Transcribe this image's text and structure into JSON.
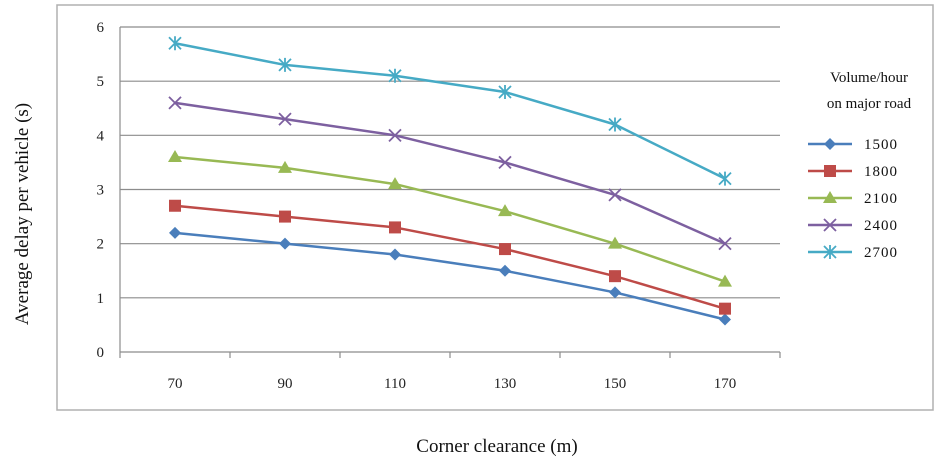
{
  "chart_data": {
    "type": "line",
    "title": "",
    "xlabel": "Corner clearance (m)",
    "ylabel": "Average delay per vehicle (s)",
    "categories": [
      "70",
      "90",
      "110",
      "130",
      "150",
      "170"
    ],
    "ylim": [
      0,
      6
    ],
    "yticks": [
      "0",
      "1",
      "2",
      "3",
      "4",
      "5",
      "6"
    ],
    "grid": "horizontal",
    "legend_position": "right",
    "legend_title_lines": [
      "Volume/hour",
      "on major road"
    ],
    "series": [
      {
        "name": "1500",
        "values": [
          2.2,
          2.0,
          1.8,
          1.5,
          1.1,
          0.6
        ],
        "color": "#4a7ebb",
        "marker": "diamond"
      },
      {
        "name": "1800",
        "values": [
          2.7,
          2.5,
          2.3,
          1.9,
          1.4,
          0.8
        ],
        "color": "#be4b48",
        "marker": "square"
      },
      {
        "name": "2100",
        "values": [
          3.6,
          3.4,
          3.1,
          2.6,
          2.0,
          1.3
        ],
        "color": "#98b954",
        "marker": "triangle"
      },
      {
        "name": "2400",
        "values": [
          4.6,
          4.3,
          4.0,
          3.5,
          2.9,
          2.0
        ],
        "color": "#7d60a0",
        "marker": "x"
      },
      {
        "name": "2700",
        "values": [
          5.7,
          5.3,
          5.1,
          4.8,
          4.2,
          3.2
        ],
        "color": "#46aac5",
        "marker": "star"
      }
    ]
  }
}
